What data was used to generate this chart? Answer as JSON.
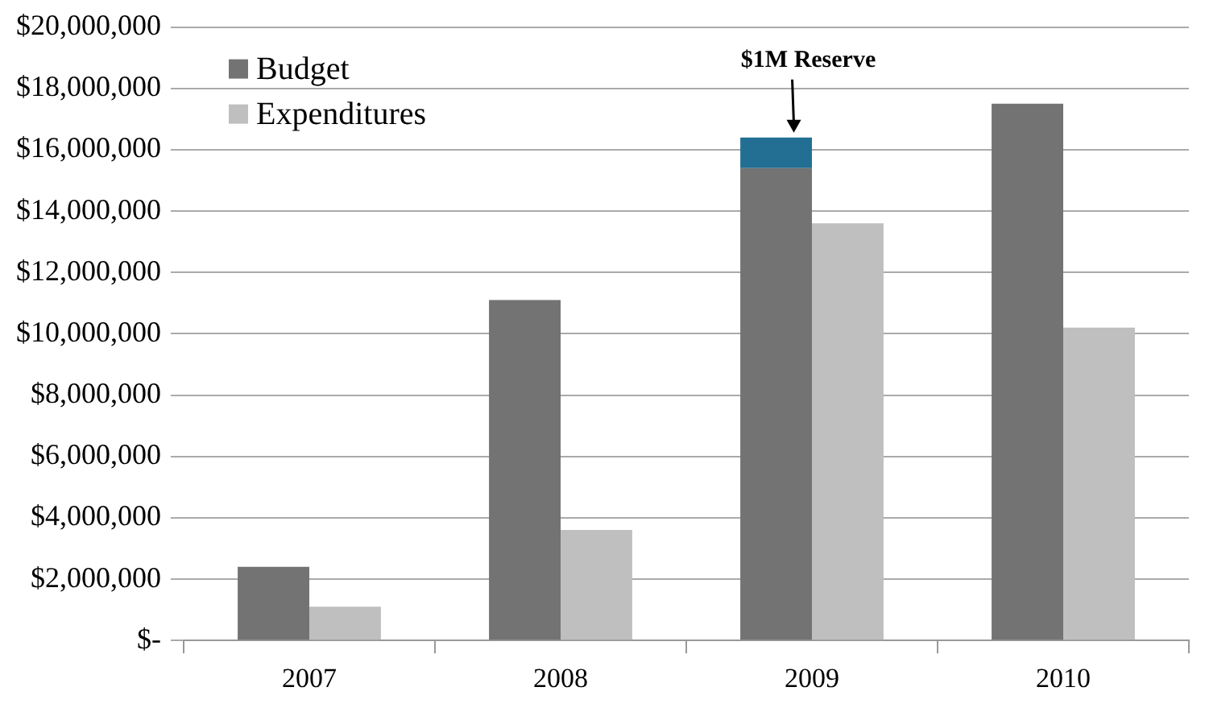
{
  "chart_data": {
    "type": "bar",
    "categories": [
      "2007",
      "2008",
      "2009",
      "2010"
    ],
    "series": [
      {
        "name": "Budget",
        "color": "#737373",
        "values": [
          2400000,
          11100000,
          15400000,
          17500000
        ]
      },
      {
        "color": "#236f94",
        "values": [
          null,
          null,
          1000000,
          null
        ],
        "base": [
          null,
          null,
          15400000,
          null
        ]
      },
      {
        "name": "Expenditures",
        "color": "#bfbfbf",
        "values": [
          1100000,
          3600000,
          13600000,
          10200000
        ]
      }
    ],
    "ylim": [
      0,
      20000000
    ],
    "yticks": [
      {
        "value": 0,
        "label": "$-"
      },
      {
        "value": 2000000,
        "label": "$2,000,000"
      },
      {
        "value": 4000000,
        "label": "$4,000,000"
      },
      {
        "value": 6000000,
        "label": "$6,000,000"
      },
      {
        "value": 8000000,
        "label": "$8,000,000"
      },
      {
        "value": 10000000,
        "label": "$10,000,000"
      },
      {
        "value": 12000000,
        "label": "$12,000,000"
      },
      {
        "value": 14000000,
        "label": "$14,000,000"
      },
      {
        "value": 16000000,
        "label": "$16,000,000"
      },
      {
        "value": 18000000,
        "label": "$18,000,000"
      },
      {
        "value": 20000000,
        "label": "$20,000,000"
      }
    ],
    "annotations": [
      {
        "text": "$1M Reserve",
        "x": "2009",
        "y": 16400000
      }
    ],
    "grid": "y",
    "legend": "top left"
  }
}
